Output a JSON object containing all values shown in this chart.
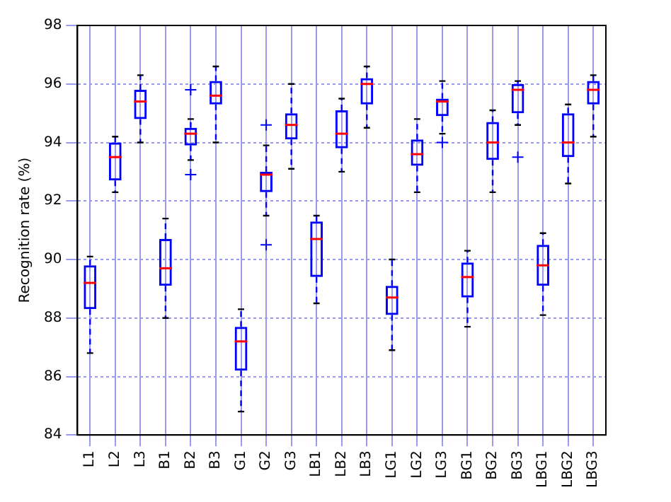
{
  "chart_data": {
    "type": "box",
    "ylabel": "Recognition rate (%)",
    "categories": [
      "L1",
      "L2",
      "L3",
      "B1",
      "B2",
      "B3",
      "G1",
      "G2",
      "G3",
      "LB1",
      "LB2",
      "LB3",
      "LG1",
      "LG2",
      "LG3",
      "BG1",
      "BG2",
      "BG3",
      "LBG1",
      "LBG2",
      "LBG3"
    ],
    "ylim": [
      84,
      98
    ],
    "yticks": [
      84,
      86,
      88,
      90,
      92,
      94,
      96,
      98
    ],
    "grid": true,
    "series": [
      {
        "color": "#0000ff",
        "boxes": [
          {
            "low": 86.8,
            "q1": 88.3,
            "median": 89.2,
            "q3": 89.8,
            "high": 90.1
          },
          {
            "low": 92.3,
            "q1": 92.7,
            "median": 93.5,
            "q3": 94.0,
            "high": 94.2
          },
          {
            "low": 94.0,
            "q1": 94.8,
            "median": 95.4,
            "q3": 95.8,
            "high": 96.3
          },
          {
            "low": 88.0,
            "q1": 89.1,
            "median": 89.7,
            "q3": 90.7,
            "high": 91.4
          },
          {
            "low": 93.4,
            "q1": 93.9,
            "median": 94.3,
            "q3": 94.5,
            "high": 94.8,
            "outliers": [
              95.8,
              92.9
            ]
          },
          {
            "low": 94.0,
            "q1": 95.3,
            "median": 95.6,
            "q3": 96.1,
            "high": 96.6
          },
          {
            "low": 84.8,
            "q1": 86.2,
            "median": 87.2,
            "q3": 87.7,
            "high": 88.3
          },
          {
            "low": 91.5,
            "q1": 92.3,
            "median": 92.9,
            "q3": 93.0,
            "high": 93.9,
            "outliers": [
              94.6,
              90.5
            ]
          },
          {
            "low": 93.1,
            "q1": 94.1,
            "median": 94.6,
            "q3": 95.0,
            "high": 96.0
          },
          {
            "low": 88.5,
            "q1": 89.4,
            "median": 90.7,
            "q3": 91.3,
            "high": 91.5
          },
          {
            "low": 93.0,
            "q1": 93.8,
            "median": 94.3,
            "q3": 95.1,
            "high": 95.5
          },
          {
            "low": 94.5,
            "q1": 95.3,
            "median": 96.0,
            "q3": 96.2,
            "high": 96.6
          },
          {
            "low": 86.9,
            "q1": 88.1,
            "median": 88.7,
            "q3": 89.1,
            "high": 90.0
          },
          {
            "low": 92.3,
            "q1": 93.2,
            "median": 93.6,
            "q3": 94.1,
            "high": 94.8
          },
          {
            "low": 94.3,
            "q1": 94.9,
            "median": 95.4,
            "q3": 95.5,
            "high": 96.1,
            "outliers": [
              94.0
            ]
          },
          {
            "low": 87.7,
            "q1": 88.7,
            "median": 89.4,
            "q3": 89.9,
            "high": 90.3
          },
          {
            "low": 92.3,
            "q1": 93.4,
            "median": 94.0,
            "q3": 94.7,
            "high": 95.1
          },
          {
            "low": 94.6,
            "q1": 95.0,
            "median": 95.8,
            "q3": 96.0,
            "high": 96.1,
            "outliers": [
              93.5
            ]
          },
          {
            "low": 88.1,
            "q1": 89.1,
            "median": 89.8,
            "q3": 90.5,
            "high": 90.9
          },
          {
            "low": 92.6,
            "q1": 93.5,
            "median": 94.0,
            "q3": 95.0,
            "high": 95.3
          },
          {
            "low": 94.2,
            "q1": 95.3,
            "median": 95.8,
            "q3": 96.1,
            "high": 96.3
          }
        ]
      }
    ]
  }
}
